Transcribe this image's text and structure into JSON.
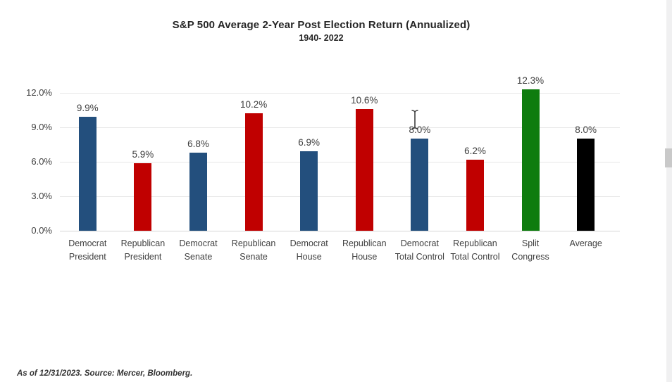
{
  "header": {
    "title": "S&P 500 Average 2-Year Post Election Return (Annualized)",
    "subtitle": "1940- 2022"
  },
  "chart_data": {
    "type": "bar",
    "title": "S&P 500 Average 2-Year Post Election Return (Annualized)",
    "subtitle": "1940- 2022",
    "xlabel": "",
    "ylabel": "",
    "categories": [
      [
        "Democrat",
        "President"
      ],
      [
        "Republican",
        "President"
      ],
      [
        "Democrat",
        "Senate"
      ],
      [
        "Republican",
        "Senate"
      ],
      [
        "Democrat",
        "House"
      ],
      [
        "Republican",
        "House"
      ],
      [
        "Democrat",
        "Total Control"
      ],
      [
        "Republican",
        "Total Control"
      ],
      [
        "Split",
        "Congress"
      ],
      [
        "Average"
      ]
    ],
    "values": [
      9.9,
      5.9,
      6.8,
      10.2,
      6.9,
      10.6,
      8.0,
      6.2,
      12.3,
      8.0
    ],
    "value_labels": [
      "9.9%",
      "5.9%",
      "6.8%",
      "10.2%",
      "6.9%",
      "10.6%",
      "8.0%",
      "6.2%",
      "12.3%",
      "8.0%"
    ],
    "bar_colors": [
      "#234F7D",
      "#C00000",
      "#234F7D",
      "#C00000",
      "#234F7D",
      "#C00000",
      "#234F7D",
      "#C00000",
      "#0E7C0E",
      "#000000"
    ],
    "color_legend": {
      "democrat_blue": "#234F7D",
      "republican_red": "#C00000",
      "split_congress_green": "#0E7C0E",
      "average_black": "#000000"
    },
    "yticks": [
      "0.0%",
      "3.0%",
      "6.0%",
      "9.0%",
      "12.0%"
    ],
    "ytick_values": [
      0,
      3,
      6,
      9,
      12
    ],
    "ylim": [
      0,
      13.7
    ],
    "grid": true,
    "gridline_color": "#e7e7e7",
    "axis_line_color": "#d6d6d6",
    "label_color": "#404040",
    "legend_position": "none"
  },
  "footer": {
    "source_note": "As of 12/31/2023. Source: Mercer, Bloomberg."
  },
  "ui": {
    "cursor": "text-i-beam",
    "scrollbar_track_color": "#f0f0f1",
    "scrollbar_thumb_color": "#c9c9c9"
  }
}
